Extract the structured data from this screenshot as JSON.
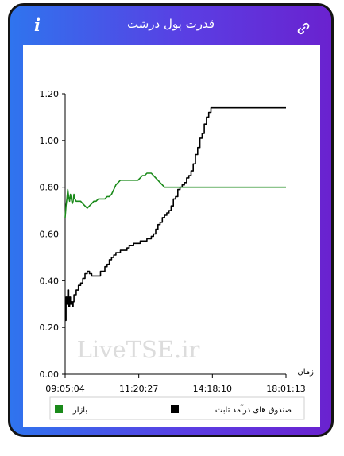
{
  "header": {
    "title": "قدرت پول درشت",
    "info_label": "i",
    "info_icon": "info-icon",
    "link_icon": "link-icon"
  },
  "colors": {
    "gradient_start": "#2f74ee",
    "gradient_end": "#6a22cf",
    "market": "#1a8a1a",
    "fixed_income": "#000000"
  },
  "watermark": "LiveTSE.ir",
  "chart_data": {
    "type": "line",
    "x_ticks": [
      "09:05:04",
      "11:20:27",
      "14:18:10",
      "18:01:13"
    ],
    "x_axis_label": "زمان",
    "y_ticks": [
      "0.00",
      "0.20",
      "0.40",
      "0.60",
      "0.80",
      "1.00",
      "1.20"
    ],
    "ylim": [
      0,
      1.2
    ],
    "grid": false,
    "legend": "bottom",
    "series": [
      {
        "name": "صندوق های درآمد ثابت",
        "color": "#000000",
        "step": true,
        "points": [
          [
            0.0,
            0.23
          ],
          [
            0.4,
            0.33
          ],
          [
            0.8,
            0.3
          ],
          [
            1.2,
            0.36
          ],
          [
            1.6,
            0.29
          ],
          [
            2.0,
            0.33
          ],
          [
            2.4,
            0.3
          ],
          [
            2.8,
            0.31
          ],
          [
            3.2,
            0.29
          ],
          [
            3.6,
            0.31
          ],
          [
            4.0,
            0.34
          ],
          [
            5,
            0.36
          ],
          [
            6,
            0.38
          ],
          [
            7,
            0.39
          ],
          [
            8,
            0.41
          ],
          [
            9,
            0.43
          ],
          [
            10,
            0.44
          ],
          [
            11,
            0.43
          ],
          [
            12,
            0.42
          ],
          [
            13,
            0.42
          ],
          [
            14,
            0.42
          ],
          [
            15,
            0.42
          ],
          [
            16,
            0.44
          ],
          [
            17,
            0.44
          ],
          [
            18,
            0.46
          ],
          [
            19,
            0.47
          ],
          [
            20,
            0.49
          ],
          [
            21,
            0.5
          ],
          [
            22,
            0.51
          ],
          [
            23,
            0.52
          ],
          [
            24,
            0.52
          ],
          [
            25,
            0.53
          ],
          [
            26,
            0.53
          ],
          [
            27,
            0.53
          ],
          [
            28,
            0.54
          ],
          [
            29,
            0.55
          ],
          [
            30,
            0.55
          ],
          [
            31,
            0.56
          ],
          [
            32,
            0.56
          ],
          [
            33,
            0.56
          ],
          [
            34,
            0.57
          ],
          [
            35,
            0.57
          ],
          [
            36,
            0.57
          ],
          [
            37,
            0.58
          ],
          [
            38,
            0.58
          ],
          [
            39,
            0.59
          ],
          [
            40,
            0.6
          ],
          [
            41,
            0.62
          ],
          [
            42,
            0.64
          ],
          [
            43,
            0.65
          ],
          [
            44,
            0.67
          ],
          [
            45,
            0.68
          ],
          [
            46,
            0.69
          ],
          [
            47,
            0.7
          ],
          [
            48,
            0.72
          ],
          [
            49,
            0.75
          ],
          [
            50,
            0.76
          ],
          [
            51,
            0.79
          ],
          [
            52,
            0.8
          ],
          [
            53,
            0.81
          ],
          [
            54,
            0.82
          ],
          [
            55,
            0.84
          ],
          [
            56,
            0.85
          ],
          [
            57,
            0.87
          ],
          [
            58,
            0.9
          ],
          [
            59,
            0.94
          ],
          [
            60,
            0.97
          ],
          [
            61,
            1.01
          ],
          [
            62,
            1.03
          ],
          [
            63,
            1.07
          ],
          [
            64,
            1.1
          ],
          [
            65,
            1.12
          ],
          [
            66,
            1.14
          ],
          [
            67,
            1.14
          ],
          [
            68,
            1.14
          ],
          [
            69,
            1.14
          ],
          [
            70,
            1.14
          ],
          [
            72,
            1.14
          ],
          [
            75,
            1.14
          ],
          [
            78,
            1.14
          ],
          [
            80,
            1.14
          ],
          [
            82,
            1.14
          ],
          [
            85,
            1.14
          ],
          [
            88,
            1.14
          ],
          [
            90,
            1.14
          ],
          [
            92,
            1.14
          ],
          [
            95,
            1.14
          ],
          [
            98,
            1.14
          ],
          [
            100,
            1.14
          ]
        ]
      },
      {
        "name": "بازار",
        "color": "#1a8a1a",
        "step": false,
        "points": [
          [
            0.0,
            0.67
          ],
          [
            0.4,
            0.72
          ],
          [
            0.8,
            0.75
          ],
          [
            1.2,
            0.79
          ],
          [
            1.6,
            0.76
          ],
          [
            2.0,
            0.74
          ],
          [
            2.4,
            0.77
          ],
          [
            2.8,
            0.75
          ],
          [
            3.2,
            0.73
          ],
          [
            3.6,
            0.74
          ],
          [
            4.0,
            0.77
          ],
          [
            4.4,
            0.75
          ],
          [
            5,
            0.74
          ],
          [
            6,
            0.74
          ],
          [
            7,
            0.74
          ],
          [
            8,
            0.73
          ],
          [
            9,
            0.72
          ],
          [
            10,
            0.71
          ],
          [
            11,
            0.72
          ],
          [
            12,
            0.73
          ],
          [
            13,
            0.74
          ],
          [
            14,
            0.74
          ],
          [
            15,
            0.75
          ],
          [
            16,
            0.75
          ],
          [
            17,
            0.75
          ],
          [
            18,
            0.75
          ],
          [
            19,
            0.76
          ],
          [
            20,
            0.76
          ],
          [
            21,
            0.77
          ],
          [
            22,
            0.79
          ],
          [
            23,
            0.81
          ],
          [
            24,
            0.82
          ],
          [
            25,
            0.83
          ],
          [
            26,
            0.83
          ],
          [
            27,
            0.83
          ],
          [
            28,
            0.83
          ],
          [
            29,
            0.83
          ],
          [
            30,
            0.83
          ],
          [
            31,
            0.83
          ],
          [
            32,
            0.83
          ],
          [
            33,
            0.83
          ],
          [
            34,
            0.84
          ],
          [
            35,
            0.85
          ],
          [
            36,
            0.85
          ],
          [
            37,
            0.86
          ],
          [
            38,
            0.86
          ],
          [
            39,
            0.86
          ],
          [
            40,
            0.85
          ],
          [
            41,
            0.84
          ],
          [
            42,
            0.83
          ],
          [
            43,
            0.82
          ],
          [
            44,
            0.81
          ],
          [
            45,
            0.8
          ],
          [
            46,
            0.8
          ],
          [
            47,
            0.8
          ],
          [
            48,
            0.8
          ],
          [
            50,
            0.8
          ],
          [
            55,
            0.8
          ],
          [
            60,
            0.8
          ],
          [
            65,
            0.8
          ],
          [
            70,
            0.8
          ],
          [
            75,
            0.8
          ],
          [
            80,
            0.8
          ],
          [
            85,
            0.8
          ],
          [
            90,
            0.8
          ],
          [
            95,
            0.8
          ],
          [
            100,
            0.8
          ]
        ]
      }
    ]
  }
}
